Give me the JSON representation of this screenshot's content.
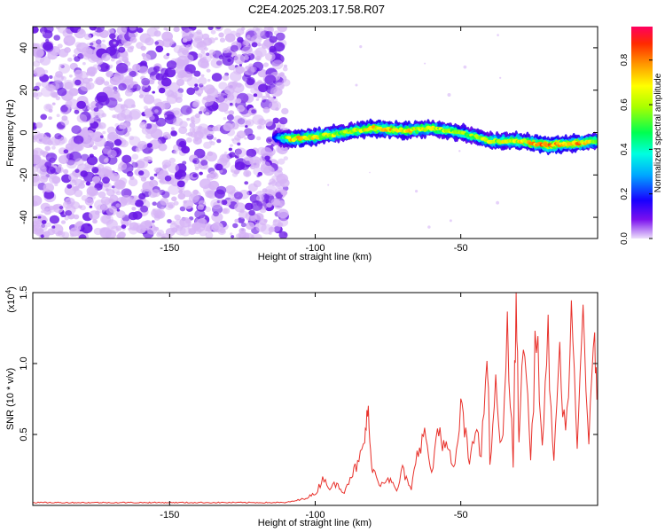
{
  "title": "C2E4.2025.203.17.58.R07",
  "colors": {
    "signal_line": "#e8302a",
    "speckle_light": "#d6b4f6",
    "speckle_dark": "#6a18e6",
    "axis": "#000000"
  },
  "chart_data": [
    {
      "type": "heatmap",
      "name": "spectrogram",
      "xlabel": "Height of straight line (km)",
      "ylabel": "Frequency (Hz)",
      "xlim": [
        -197,
        -3
      ],
      "ylim": [
        -50,
        50
      ],
      "xticks": [
        -150,
        -100,
        -50
      ],
      "yticks": [
        -40,
        -20,
        0,
        20,
        40
      ],
      "colorbar": {
        "label": "Normalized spectral amplitude",
        "range": [
          0,
          0.95
        ],
        "ticks": [
          0.0,
          0.2,
          0.4,
          0.6,
          0.8
        ],
        "colormap": [
          "#e8d8fb",
          "#6a00e6",
          "#0000ff",
          "#00b4ff",
          "#00ffd2",
          "#00ff50",
          "#a0ff00",
          "#ffff00",
          "#ffa000",
          "#ff3000",
          "#ff0060"
        ]
      },
      "noise_region": {
        "x_range": [
          -197,
          -110
        ],
        "level": "0.05-0.2"
      },
      "signal_track": {
        "x": [
          -114,
          -108,
          -100,
          -90,
          -80,
          -70,
          -60,
          -50,
          -40,
          -30,
          -20,
          -10,
          -3
        ],
        "y": [
          -2,
          -3,
          -2,
          0,
          2,
          1,
          2,
          0,
          -4,
          -4,
          -6,
          -5,
          -4
        ],
        "amplitude": [
          0.2,
          0.75,
          0.7,
          0.6,
          0.75,
          0.75,
          0.7,
          0.6,
          0.65,
          0.7,
          0.85,
          0.8,
          0.65
        ]
      }
    },
    {
      "type": "line",
      "name": "snr",
      "xlabel": "Height of straight line (km)",
      "ylabel": "SNR (10 * v/v)",
      "y_multiplier": "(x10^4)",
      "xlim": [
        -197,
        -3
      ],
      "ylim": [
        0,
        1.5
      ],
      "xticks": [
        -150,
        -100,
        -50
      ],
      "yticks": [
        0.5,
        1.0,
        1.5
      ],
      "series": [
        {
          "x": [
            -197,
            -110,
            -105,
            -100,
            -97,
            -95,
            -93,
            -90,
            -88,
            -85,
            -83,
            -82,
            -81,
            -80,
            -78,
            -75,
            -72,
            -70,
            -67,
            -65,
            -62,
            -60,
            -58,
            -55,
            -52,
            -50,
            -47,
            -45,
            -43,
            -41,
            -40,
            -38,
            -36,
            -34,
            -32,
            -31,
            -30,
            -28,
            -26,
            -24,
            -22,
            -20,
            -18,
            -16,
            -14,
            -12,
            -10,
            -8,
            -6,
            -4,
            -3
          ],
          "y": [
            0.02,
            0.02,
            0.04,
            0.08,
            0.2,
            0.12,
            0.15,
            0.1,
            0.2,
            0.3,
            0.45,
            0.7,
            0.35,
            0.25,
            0.15,
            0.2,
            0.1,
            0.25,
            0.1,
            0.4,
            0.5,
            0.2,
            0.55,
            0.4,
            0.25,
            0.7,
            0.3,
            0.6,
            0.3,
            1.14,
            0.3,
            0.8,
            0.4,
            1.2,
            0.3,
            1.5,
            0.5,
            1.2,
            0.3,
            1.3,
            0.4,
            1.15,
            0.3,
            1.0,
            0.5,
            1.25,
            0.4,
            1.38,
            0.45,
            1.15,
            0.8
          ]
        }
      ]
    }
  ]
}
